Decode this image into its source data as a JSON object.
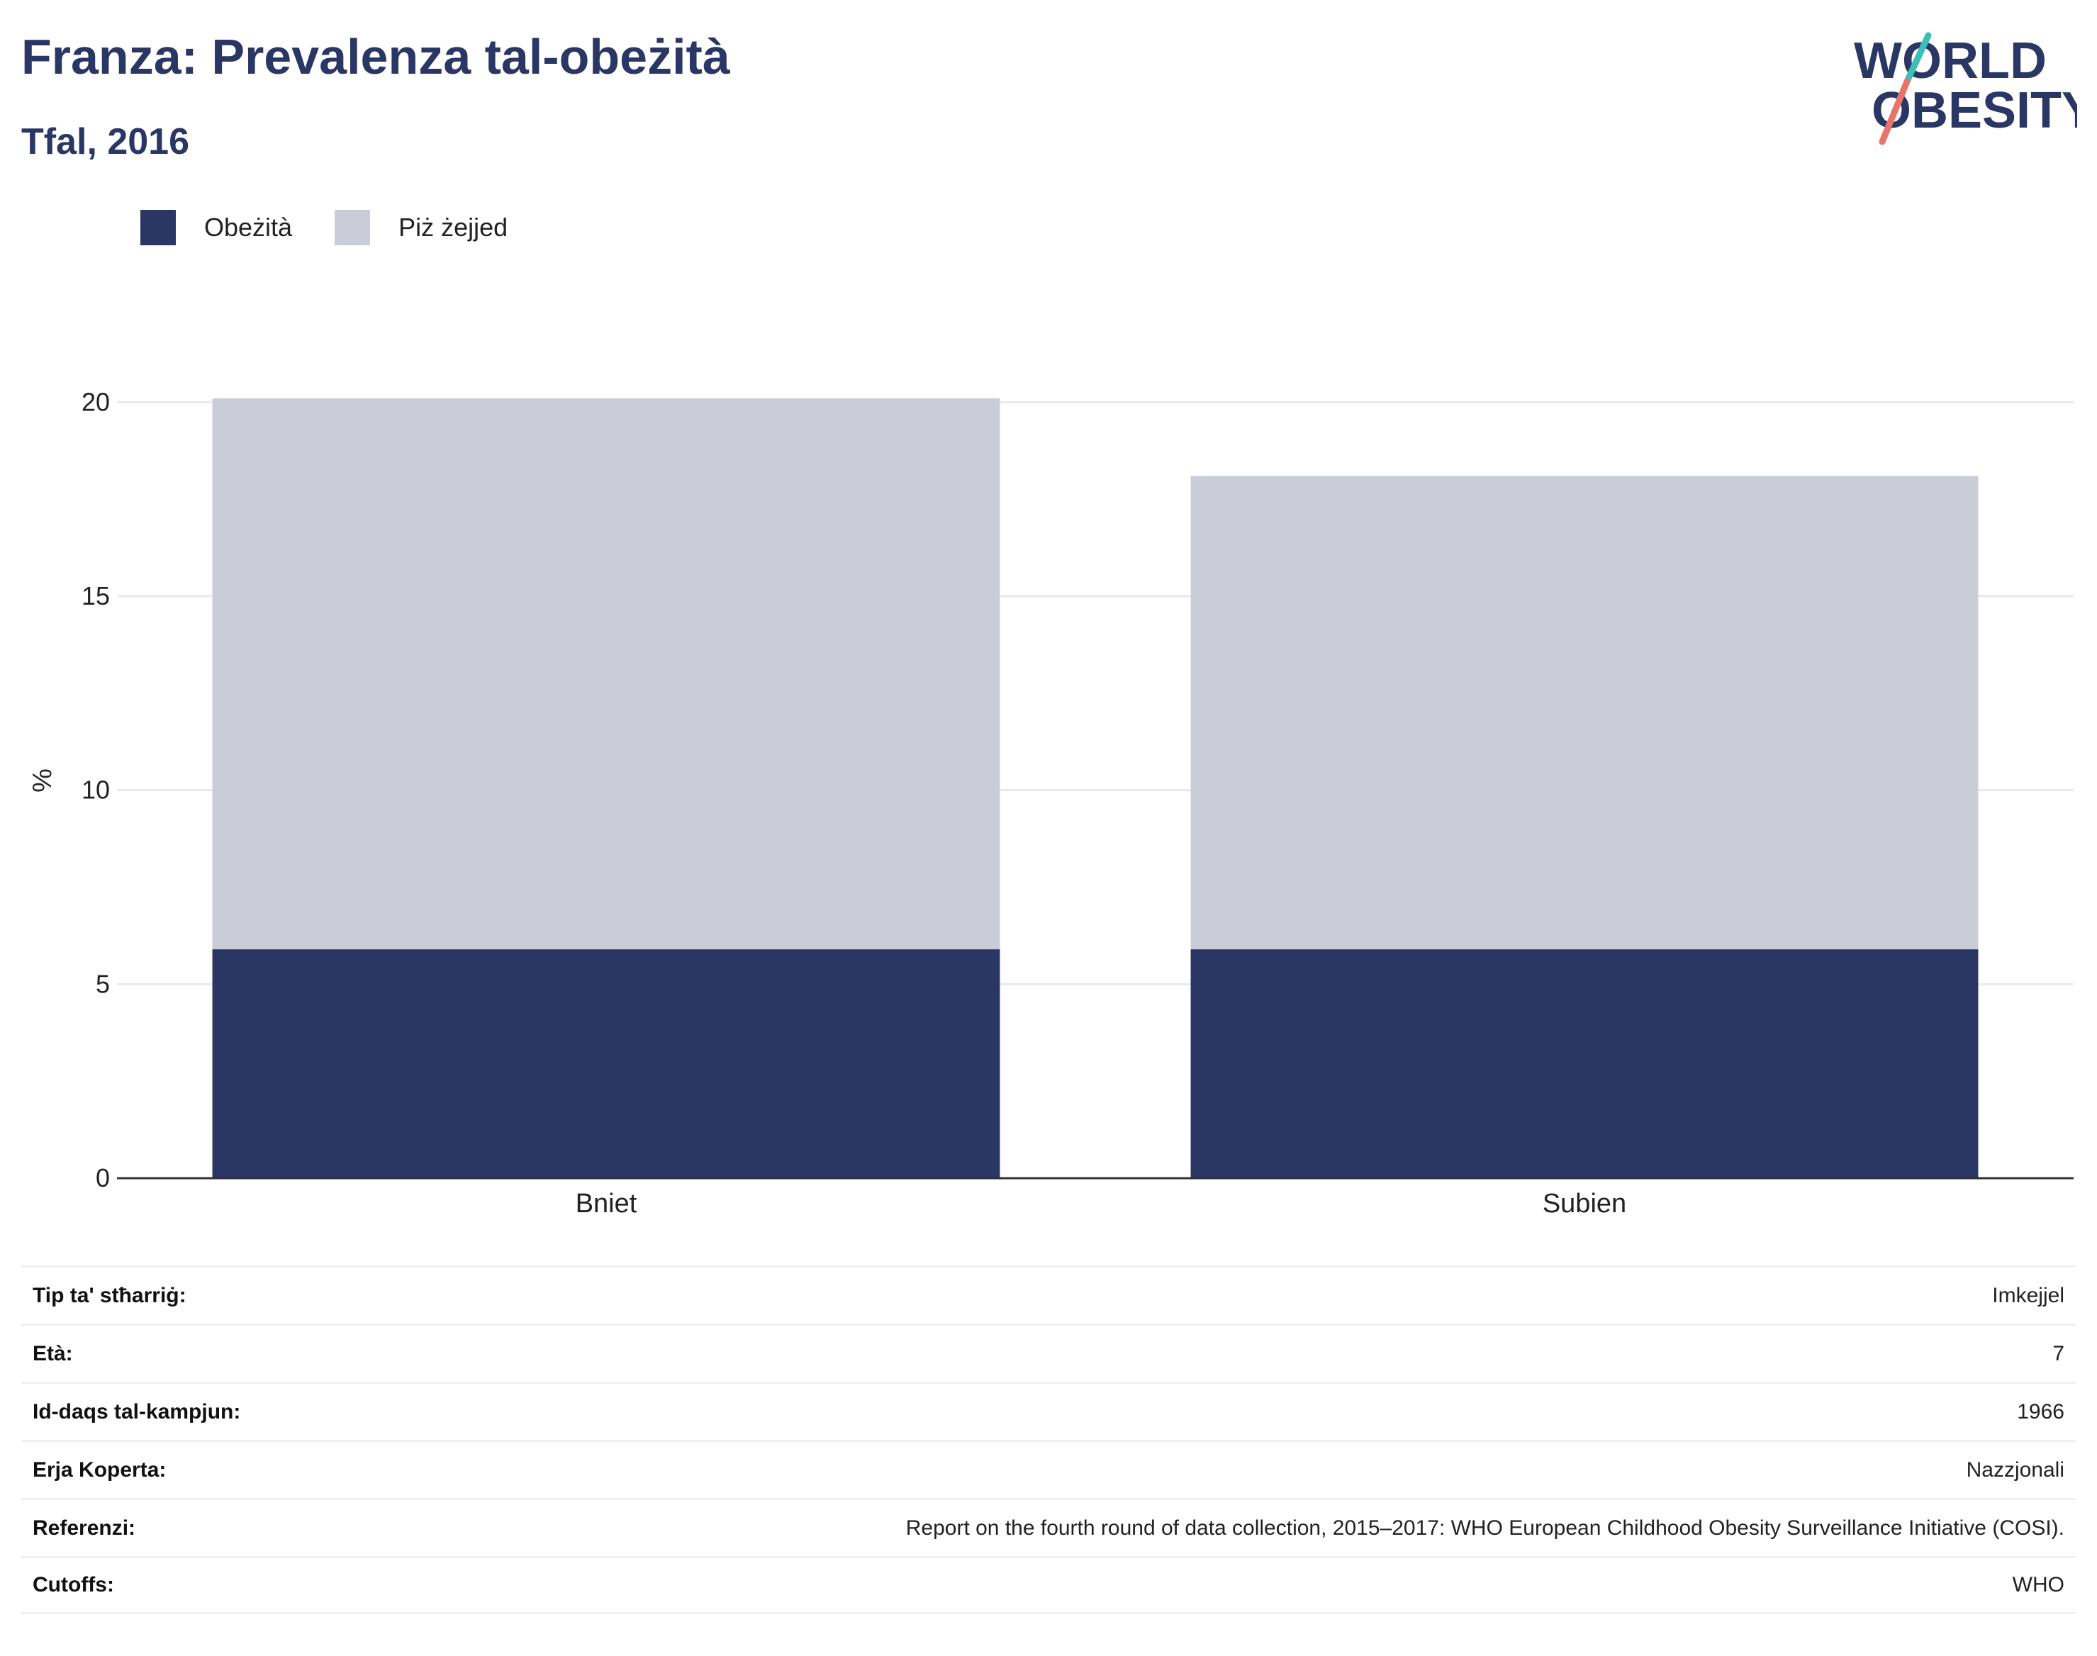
{
  "header": {
    "title": "Franza: Prevalenza tal-obeżità",
    "subtitle": "Tfal, 2016"
  },
  "logo": {
    "line1": "WORLD",
    "line2": "OBESITY",
    "icon": "world-obesity-logo"
  },
  "colors": {
    "obesity": "#2a3663",
    "overweight": "#cacdd8",
    "title": "#2a3663",
    "logo_teal": "#3bbfb8",
    "logo_coral": "#e8736a"
  },
  "chart_data": {
    "type": "bar",
    "stacked": true,
    "categories": [
      "Bniet",
      "Subien"
    ],
    "series": [
      {
        "name": "Obeżità",
        "values": [
          5.9,
          5.9
        ]
      },
      {
        "name": "Piż żejjed",
        "values": [
          14.2,
          12.2
        ]
      }
    ],
    "ylabel": "%",
    "ylim": [
      0,
      20.5
    ],
    "yticks": [
      0,
      5,
      10,
      15,
      20
    ],
    "grid": true,
    "legend_position": "top-left"
  },
  "meta": [
    {
      "label": "Tip ta' stħarriġ:",
      "value": "Imkejjel"
    },
    {
      "label": "Età:",
      "value": "7"
    },
    {
      "label": "Id-daqs tal-kampjun:",
      "value": "1966"
    },
    {
      "label": "Erja Koperta:",
      "value": "Nazzjonali"
    },
    {
      "label": "Referenzi:",
      "value": "Report on the fourth round of data collection, 2015–2017: WHO European Childhood Obesity Surveillance Initiative (COSI)."
    },
    {
      "label": "Cutoffs:",
      "value": "WHO"
    }
  ]
}
